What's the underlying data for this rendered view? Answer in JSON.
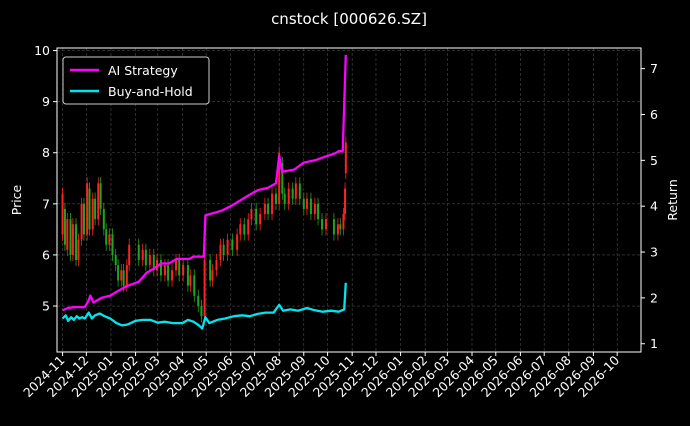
{
  "chart_data": {
    "type": "line",
    "title": "cnstock [000626.SZ]",
    "xlabel": "",
    "ylabel": "Price",
    "ylabel_right": "Return",
    "x_ticks": [
      "2024-11",
      "2024-12",
      "2025-01",
      "2025-02",
      "2025-03",
      "2025-04",
      "2025-05",
      "2025-06",
      "2025-07",
      "2025-08",
      "2025-09",
      "2025-10",
      "2025-11",
      "2025-12",
      "2026-01",
      "2026-02",
      "2026-03",
      "2026-04",
      "2026-05",
      "2026-06",
      "2026-07",
      "2026-08",
      "2026-09",
      "2026-10"
    ],
    "xlim": [
      "2024-10-25",
      "2026-10-31"
    ],
    "ylim_left": [
      4.1,
      10.05
    ],
    "yticks_left": [
      5,
      6,
      7,
      8,
      9,
      10
    ],
    "ylim_right": [
      0.82,
      7.45
    ],
    "yticks_right": [
      1,
      2,
      3,
      4,
      5,
      6,
      7
    ],
    "grid": true,
    "legend_position": "top-left",
    "colors": {
      "background": "#000000",
      "ai_strategy": "#ff00ff",
      "buy_and_hold": "#00e5ee",
      "candle_up": "#ff2222",
      "candle_down": "#1fa51f",
      "grid": "#4a4a4a"
    },
    "series": [
      {
        "name": "AI Strategy",
        "axis": "right",
        "points": [
          [
            "2024-11-01",
            1.73
          ],
          [
            "2024-11-08",
            1.78
          ],
          [
            "2024-11-15",
            1.8
          ],
          [
            "2024-11-22",
            1.8
          ],
          [
            "2024-11-29",
            1.8
          ],
          [
            "2024-12-04",
            1.95
          ],
          [
            "2024-12-06",
            2.05
          ],
          [
            "2024-12-10",
            1.9
          ],
          [
            "2024-12-20",
            2.0
          ],
          [
            "2024-12-31",
            2.05
          ],
          [
            "2025-01-10",
            2.15
          ],
          [
            "2025-01-20",
            2.25
          ],
          [
            "2025-02-05",
            2.35
          ],
          [
            "2025-02-15",
            2.55
          ],
          [
            "2025-02-25",
            2.65
          ],
          [
            "2025-03-05",
            2.75
          ],
          [
            "2025-03-15",
            2.75
          ],
          [
            "2025-03-25",
            2.85
          ],
          [
            "2025-04-10",
            2.85
          ],
          [
            "2025-04-15",
            2.9
          ],
          [
            "2025-04-28",
            2.9
          ],
          [
            "2025-04-30",
            3.8
          ],
          [
            "2025-05-10",
            3.85
          ],
          [
            "2025-05-20",
            3.9
          ],
          [
            "2025-06-01",
            4.0
          ],
          [
            "2025-06-20",
            4.2
          ],
          [
            "2025-07-05",
            4.35
          ],
          [
            "2025-07-18",
            4.4
          ],
          [
            "2025-07-28",
            4.5
          ],
          [
            "2025-08-01",
            5.1
          ],
          [
            "2025-08-05",
            4.75
          ],
          [
            "2025-08-20",
            4.8
          ],
          [
            "2025-09-01",
            4.95
          ],
          [
            "2025-09-15",
            5.0
          ],
          [
            "2025-10-01",
            5.1
          ],
          [
            "2025-10-10",
            5.15
          ],
          [
            "2025-10-15",
            5.2
          ],
          [
            "2025-10-20",
            5.2
          ],
          [
            "2025-10-24",
            7.3
          ]
        ]
      },
      {
        "name": "Buy-and-Hold",
        "axis": "right",
        "points": [
          [
            "2024-11-01",
            1.55
          ],
          [
            "2024-11-05",
            1.62
          ],
          [
            "2024-11-08",
            1.5
          ],
          [
            "2024-11-12",
            1.58
          ],
          [
            "2024-11-15",
            1.52
          ],
          [
            "2024-11-19",
            1.6
          ],
          [
            "2024-11-22",
            1.55
          ],
          [
            "2024-11-26",
            1.58
          ],
          [
            "2024-11-29",
            1.55
          ],
          [
            "2024-12-04",
            1.68
          ],
          [
            "2024-12-08",
            1.55
          ],
          [
            "2024-12-12",
            1.62
          ],
          [
            "2024-12-18",
            1.66
          ],
          [
            "2024-12-24",
            1.6
          ],
          [
            "2024-12-31",
            1.55
          ],
          [
            "2025-01-08",
            1.45
          ],
          [
            "2025-01-15",
            1.4
          ],
          [
            "2025-01-22",
            1.42
          ],
          [
            "2025-02-01",
            1.5
          ],
          [
            "2025-02-10",
            1.52
          ],
          [
            "2025-02-20",
            1.52
          ],
          [
            "2025-03-01",
            1.46
          ],
          [
            "2025-03-10",
            1.48
          ],
          [
            "2025-03-20",
            1.45
          ],
          [
            "2025-04-01",
            1.45
          ],
          [
            "2025-04-08",
            1.52
          ],
          [
            "2025-04-15",
            1.48
          ],
          [
            "2025-04-22",
            1.4
          ],
          [
            "2025-04-26",
            1.33
          ],
          [
            "2025-04-30",
            1.58
          ],
          [
            "2025-05-05",
            1.45
          ],
          [
            "2025-05-15",
            1.52
          ],
          [
            "2025-05-25",
            1.55
          ],
          [
            "2025-06-05",
            1.6
          ],
          [
            "2025-06-15",
            1.62
          ],
          [
            "2025-06-25",
            1.6
          ],
          [
            "2025-07-05",
            1.65
          ],
          [
            "2025-07-15",
            1.68
          ],
          [
            "2025-07-25",
            1.68
          ],
          [
            "2025-08-01",
            1.85
          ],
          [
            "2025-08-06",
            1.72
          ],
          [
            "2025-08-15",
            1.75
          ],
          [
            "2025-08-25",
            1.72
          ],
          [
            "2025-09-05",
            1.78
          ],
          [
            "2025-09-15",
            1.73
          ],
          [
            "2025-09-25",
            1.7
          ],
          [
            "2025-10-05",
            1.72
          ],
          [
            "2025-10-15",
            1.7
          ],
          [
            "2025-10-22",
            1.75
          ],
          [
            "2025-10-24",
            2.33
          ]
        ]
      }
    ],
    "candles": {
      "axis": "left",
      "points": [
        [
          "2024-11-01",
          6.4,
          7.2
        ],
        [
          "2024-11-04",
          6.9,
          6.2
        ],
        [
          "2024-11-07",
          6.1,
          6.7
        ],
        [
          "2024-11-11",
          6.7,
          6.0
        ],
        [
          "2024-11-14",
          6.0,
          6.6
        ],
        [
          "2024-11-18",
          6.6,
          5.9
        ],
        [
          "2024-11-21",
          5.9,
          6.3
        ],
        [
          "2024-11-25",
          6.3,
          7.0
        ],
        [
          "2024-11-28",
          7.0,
          6.4
        ],
        [
          "2024-12-02",
          6.4,
          7.4
        ],
        [
          "2024-12-05",
          7.3,
          6.5
        ],
        [
          "2024-12-09",
          6.5,
          7.1
        ],
        [
          "2024-12-12",
          7.1,
          6.7
        ],
        [
          "2024-12-16",
          6.7,
          7.4
        ],
        [
          "2024-12-19",
          7.4,
          6.9
        ],
        [
          "2024-12-23",
          6.9,
          6.5
        ],
        [
          "2024-12-26",
          6.5,
          6.2
        ],
        [
          "2024-12-30",
          6.2,
          6.4
        ],
        [
          "2025-01-03",
          6.4,
          6.0
        ],
        [
          "2025-01-07",
          6.0,
          5.8
        ],
        [
          "2025-01-10",
          5.8,
          5.5
        ],
        [
          "2025-01-14",
          5.5,
          5.7
        ],
        [
          "2025-01-17",
          5.7,
          5.4
        ],
        [
          "2025-01-21",
          5.4,
          5.8
        ],
        [
          "2025-01-24",
          5.8,
          6.2
        ],
        [
          "2025-02-05",
          6.2,
          5.9
        ],
        [
          "2025-02-10",
          5.9,
          6.1
        ],
        [
          "2025-02-14",
          6.1,
          5.8
        ],
        [
          "2025-02-19",
          5.8,
          6.0
        ],
        [
          "2025-02-24",
          6.0,
          5.7
        ],
        [
          "2025-02-28",
          5.7,
          5.9
        ],
        [
          "2025-03-05",
          5.9,
          5.6
        ],
        [
          "2025-03-10",
          5.6,
          5.8
        ],
        [
          "2025-03-14",
          5.8,
          5.5
        ],
        [
          "2025-03-19",
          5.5,
          5.7
        ],
        [
          "2025-03-24",
          5.7,
          5.9
        ],
        [
          "2025-03-28",
          5.9,
          5.6
        ],
        [
          "2025-04-02",
          5.6,
          5.8
        ],
        [
          "2025-04-08",
          5.8,
          5.4
        ],
        [
          "2025-04-11",
          5.4,
          5.6
        ],
        [
          "2025-04-16",
          5.6,
          5.2
        ],
        [
          "2025-04-21",
          5.2,
          5.0
        ],
        [
          "2025-04-25",
          5.0,
          4.8
        ],
        [
          "2025-04-29",
          4.8,
          5.9
        ],
        [
          "2025-05-06",
          5.9,
          5.5
        ],
        [
          "2025-05-09",
          5.5,
          5.7
        ],
        [
          "2025-05-14",
          5.7,
          5.9
        ],
        [
          "2025-05-19",
          5.9,
          6.2
        ],
        [
          "2025-05-23",
          6.2,
          6.0
        ],
        [
          "2025-05-28",
          6.0,
          6.3
        ],
        [
          "2025-06-03",
          6.3,
          6.1
        ],
        [
          "2025-06-09",
          6.1,
          6.4
        ],
        [
          "2025-06-13",
          6.4,
          6.6
        ],
        [
          "2025-06-18",
          6.6,
          6.4
        ],
        [
          "2025-06-23",
          6.4,
          6.7
        ],
        [
          "2025-06-27",
          6.7,
          6.9
        ],
        [
          "2025-07-03",
          6.9,
          6.6
        ],
        [
          "2025-07-08",
          6.6,
          6.8
        ],
        [
          "2025-07-14",
          6.8,
          7.0
        ],
        [
          "2025-07-18",
          7.0,
          6.8
        ],
        [
          "2025-07-23",
          6.8,
          7.2
        ],
        [
          "2025-07-28",
          7.2,
          7.0
        ],
        [
          "2025-08-01",
          7.0,
          8.0
        ],
        [
          "2025-08-05",
          7.8,
          7.2
        ],
        [
          "2025-08-08",
          7.2,
          7.0
        ],
        [
          "2025-08-13",
          7.0,
          7.3
        ],
        [
          "2025-08-18",
          7.3,
          7.1
        ],
        [
          "2025-08-22",
          7.1,
          7.4
        ],
        [
          "2025-08-27",
          7.4,
          7.1
        ],
        [
          "2025-09-01",
          7.1,
          6.9
        ],
        [
          "2025-09-05",
          6.9,
          7.1
        ],
        [
          "2025-09-10",
          7.1,
          6.8
        ],
        [
          "2025-09-15",
          6.8,
          7.0
        ],
        [
          "2025-09-19",
          7.0,
          6.7
        ],
        [
          "2025-09-24",
          6.7,
          6.5
        ],
        [
          "2025-09-29",
          6.5,
          6.7
        ],
        [
          "2025-10-09",
          6.7,
          6.4
        ],
        [
          "2025-10-14",
          6.4,
          6.6
        ],
        [
          "2025-10-17",
          6.6,
          6.5
        ],
        [
          "2025-10-21",
          6.5,
          6.8
        ],
        [
          "2025-10-23",
          6.8,
          7.3
        ],
        [
          "2025-10-24",
          7.6,
          8.2
        ]
      ]
    }
  }
}
